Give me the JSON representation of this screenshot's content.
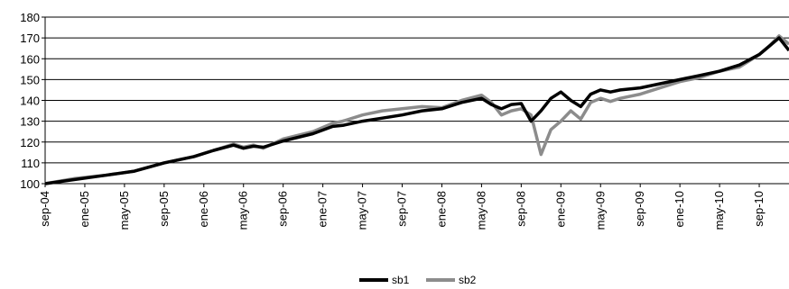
{
  "chart_data": {
    "type": "line",
    "ylim": [
      100,
      180
    ],
    "yticks": [
      100,
      110,
      120,
      130,
      140,
      150,
      160,
      170,
      180
    ],
    "grid": true,
    "legend": "bottom",
    "xticks": [
      "sep-04",
      "ene-05",
      "may-05",
      "sep-05",
      "ene-06",
      "may-06",
      "sep-06",
      "ene-07",
      "may-07",
      "sep-07",
      "ene-08",
      "may-08",
      "sep-08",
      "ene-09",
      "may-09",
      "sep-09",
      "ene-10",
      "may-10",
      "sep-10"
    ],
    "xlim": [
      "2004-09",
      "2010-12"
    ],
    "series": [
      {
        "name": "sb1",
        "color": "#000000",
        "points": [
          [
            "2004-09",
            100
          ],
          [
            "2004-12",
            102
          ],
          [
            "2005-03",
            104
          ],
          [
            "2005-06",
            106
          ],
          [
            "2005-09",
            110
          ],
          [
            "2005-12",
            113
          ],
          [
            "2006-02",
            116
          ],
          [
            "2006-04",
            118.5
          ],
          [
            "2006-05",
            117
          ],
          [
            "2006-06",
            118
          ],
          [
            "2006-07",
            117.5
          ],
          [
            "2006-09",
            120.5
          ],
          [
            "2006-12",
            124
          ],
          [
            "2007-02",
            127.5
          ],
          [
            "2007-03",
            128
          ],
          [
            "2007-05",
            130
          ],
          [
            "2007-07",
            131.5
          ],
          [
            "2007-09",
            133
          ],
          [
            "2007-11",
            135
          ],
          [
            "2008-01",
            136
          ],
          [
            "2008-03",
            139
          ],
          [
            "2008-05",
            141
          ],
          [
            "2008-06",
            138
          ],
          [
            "2008-07",
            136
          ],
          [
            "2008-08",
            138
          ],
          [
            "2008-09",
            138.5
          ],
          [
            "2008-10",
            130
          ],
          [
            "2008-11",
            135
          ],
          [
            "2008-12",
            141
          ],
          [
            "2009-01",
            144
          ],
          [
            "2009-02",
            140
          ],
          [
            "2009-03",
            137
          ],
          [
            "2009-04",
            143
          ],
          [
            "2009-05",
            145
          ],
          [
            "2009-06",
            144
          ],
          [
            "2009-07",
            145
          ],
          [
            "2009-09",
            146
          ],
          [
            "2009-11",
            148
          ],
          [
            "2010-01",
            150
          ],
          [
            "2010-03",
            152
          ],
          [
            "2010-05",
            154
          ],
          [
            "2010-07",
            157
          ],
          [
            "2010-09",
            162
          ],
          [
            "2010-10",
            166
          ],
          [
            "2010-11",
            170
          ],
          [
            "2010-12",
            164
          ]
        ]
      },
      {
        "name": "sb2",
        "color": "#8c8c8c",
        "points": [
          [
            "2004-09",
            100
          ],
          [
            "2004-12",
            102.5
          ],
          [
            "2005-03",
            104
          ],
          [
            "2005-06",
            106
          ],
          [
            "2005-09",
            110
          ],
          [
            "2005-12",
            113
          ],
          [
            "2006-02",
            116
          ],
          [
            "2006-04",
            119
          ],
          [
            "2006-05",
            117.5
          ],
          [
            "2006-06",
            118.5
          ],
          [
            "2006-07",
            117
          ],
          [
            "2006-09",
            121.5
          ],
          [
            "2006-12",
            125
          ],
          [
            "2007-02",
            129
          ],
          [
            "2007-03",
            130
          ],
          [
            "2007-05",
            133
          ],
          [
            "2007-07",
            135
          ],
          [
            "2007-09",
            136
          ],
          [
            "2007-11",
            137
          ],
          [
            "2008-01",
            136.5
          ],
          [
            "2008-03",
            140
          ],
          [
            "2008-05",
            142.5
          ],
          [
            "2008-06",
            139
          ],
          [
            "2008-07",
            133
          ],
          [
            "2008-08",
            135
          ],
          [
            "2008-09",
            136
          ],
          [
            "2008-10",
            133
          ],
          [
            "2008-11",
            114
          ],
          [
            "2008-12",
            126
          ],
          [
            "2009-01",
            130
          ],
          [
            "2009-02",
            135
          ],
          [
            "2009-03",
            131
          ],
          [
            "2009-04",
            139
          ],
          [
            "2009-05",
            141
          ],
          [
            "2009-06",
            139.5
          ],
          [
            "2009-07",
            141
          ],
          [
            "2009-09",
            143
          ],
          [
            "2009-11",
            146
          ],
          [
            "2010-01",
            149
          ],
          [
            "2010-03",
            151
          ],
          [
            "2010-05",
            154
          ],
          [
            "2010-07",
            156
          ],
          [
            "2010-09",
            162
          ],
          [
            "2010-10",
            166
          ],
          [
            "2010-11",
            171
          ],
          [
            "2010-12",
            167
          ]
        ]
      }
    ]
  }
}
